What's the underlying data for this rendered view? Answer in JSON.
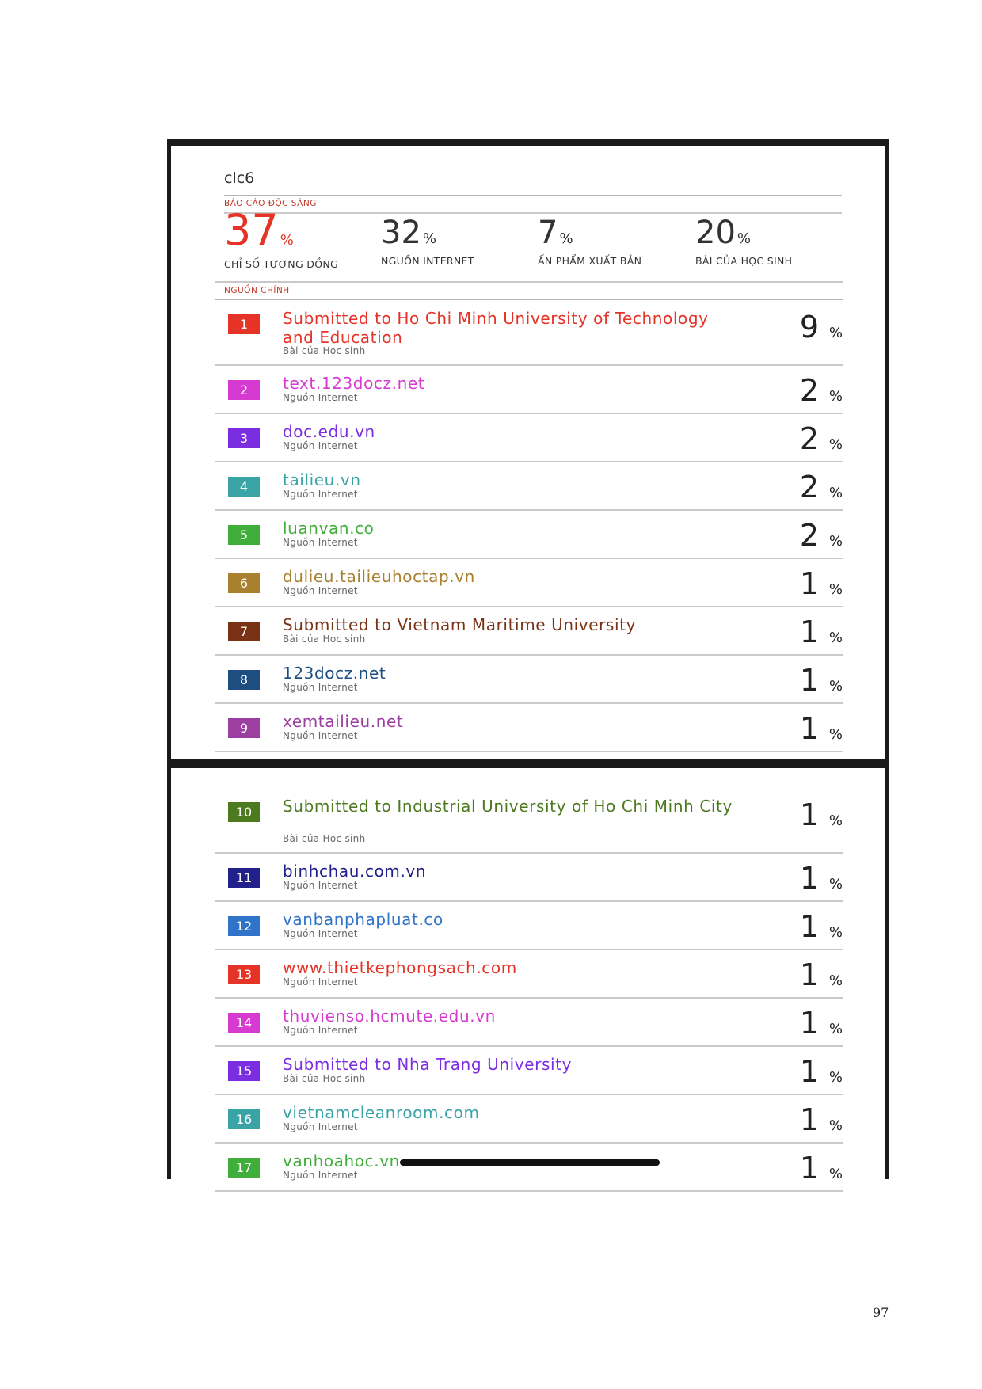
{
  "report": {
    "doc_title": "clc6",
    "report_label": "BÁO CÁO ĐỘC SÁNG",
    "sources_label": "NGUỒN CHÍNH",
    "stats": [
      {
        "value": "37",
        "pct": "%",
        "label": "CHỈ SỐ TƯƠNG ĐỒNG"
      },
      {
        "value": "32",
        "pct": "%",
        "label": "NGUỒN INTERNET"
      },
      {
        "value": "7",
        "pct": "%",
        "label": "ẤN PHẨM XUẤT BẢN"
      },
      {
        "value": "20",
        "pct": "%",
        "label": "BÀI CỦA HỌC SINH"
      }
    ]
  },
  "sources": [
    {
      "n": "1",
      "name": "Submitted to Ho Chi Minh University of Technology and Education",
      "type": "Bài của Học sinh",
      "value": "9",
      "pct": "%",
      "color": "#e53327"
    },
    {
      "n": "2",
      "name": "text.123docz.net",
      "type": "Nguồn Internet",
      "value": "2",
      "pct": "%",
      "color": "#d63ad1"
    },
    {
      "n": "3",
      "name": "doc.edu.vn",
      "type": "Nguồn Internet",
      "value": "2",
      "pct": "%",
      "color": "#7b2ee0"
    },
    {
      "n": "4",
      "name": "tailieu.vn",
      "type": "Nguồn Internet",
      "value": "2",
      "pct": "%",
      "color": "#3aa3a6"
    },
    {
      "n": "5",
      "name": "luanvan.co",
      "type": "Nguồn Internet",
      "value": "2",
      "pct": "%",
      "color": "#3fae3a"
    },
    {
      "n": "6",
      "name": "dulieu.tailieuhoctap.vn",
      "type": "Nguồn Internet",
      "value": "1",
      "pct": "%",
      "color": "#a8802e"
    },
    {
      "n": "7",
      "name": "Submitted to Vietnam Maritime University",
      "type": "Bài của Học sinh",
      "value": "1",
      "pct": "%",
      "color": "#7a3217"
    },
    {
      "n": "8",
      "name": "123docz.net",
      "type": "Nguồn Internet",
      "value": "1",
      "pct": "%",
      "color": "#1e4e80"
    },
    {
      "n": "9",
      "name": "xemtailieu.net",
      "type": "Nguồn Internet",
      "value": "1",
      "pct": "%",
      "color": "#9b3fa0"
    },
    {
      "n": "10",
      "name": "Submitted to Industrial University of Ho Chi Minh City",
      "type": "Bài của Học sinh",
      "value": "1",
      "pct": "%",
      "color": "#4d7a1f"
    },
    {
      "n": "11",
      "name": "binhchau.com.vn",
      "type": "Nguồn Internet",
      "value": "1",
      "pct": "%",
      "color": "#22208a"
    },
    {
      "n": "12",
      "name": "vanbanphapluat.co",
      "type": "Nguồn Internet",
      "value": "1",
      "pct": "%",
      "color": "#2f74c8"
    },
    {
      "n": "13",
      "name": "www.thietkephongsach.com",
      "type": "Nguồn Internet",
      "value": "1",
      "pct": "%",
      "color": "#e53327"
    },
    {
      "n": "14",
      "name": "thuvienso.hcmute.edu.vn",
      "type": "Nguồn Internet",
      "value": "1",
      "pct": "%",
      "color": "#d63ad1"
    },
    {
      "n": "15",
      "name": "Submitted to Nha Trang University",
      "type": "Bài của Học sinh",
      "value": "1",
      "pct": "%",
      "color": "#7b2ee0"
    },
    {
      "n": "16",
      "name": "vietnamcleanroom.com",
      "type": "Nguồn Internet",
      "value": "1",
      "pct": "%",
      "color": "#3aa3a6"
    },
    {
      "n": "17",
      "name": "vanhoahoc.vn",
      "type": "Nguồn Internet",
      "value": "1",
      "pct": "%",
      "color": "#3fae3a"
    }
  ],
  "page": {
    "number": "97"
  }
}
